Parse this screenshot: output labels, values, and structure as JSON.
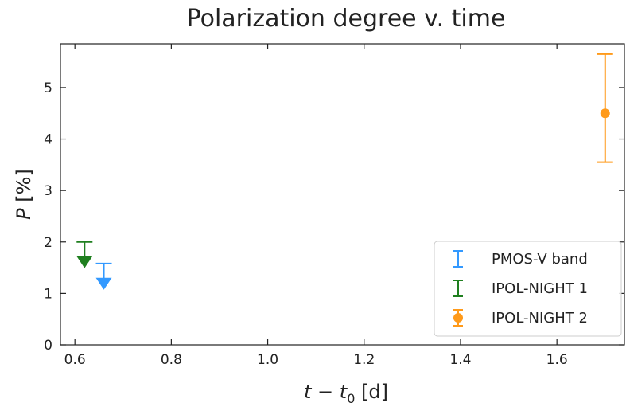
{
  "chart_data": {
    "type": "scatter",
    "title": "Polarization degree v. time",
    "xlabel": {
      "main": "t − t",
      "sub": "0",
      "unit": " [d]"
    },
    "ylabel": {
      "main": "P",
      "unit": " [%]"
    },
    "xlim": [
      0.57,
      1.74
    ],
    "ylim": [
      0,
      5.85
    ],
    "xticks": [
      0.6,
      0.8,
      1.0,
      1.2,
      1.4,
      1.6
    ],
    "xtick_labels": [
      "0.6",
      "0.8",
      "1.0",
      "1.2",
      "1.4",
      "1.6"
    ],
    "yticks": [
      0,
      1,
      2,
      3,
      4,
      5
    ],
    "ytick_labels": [
      "0",
      "1",
      "2",
      "3",
      "4",
      "5"
    ],
    "grid": false,
    "legend_position": "lower-right",
    "series": [
      {
        "name": "PMOS-V band",
        "color": "#3399ff",
        "kind": "upper-limit",
        "points": [
          {
            "x": 0.66,
            "y": 1.58,
            "arrow_to": 1.18
          }
        ]
      },
      {
        "name": "IPOL-NIGHT 1",
        "color": "#1f7f1f",
        "kind": "upper-limit",
        "points": [
          {
            "x": 0.62,
            "y": 2.0,
            "arrow_to": 1.6
          }
        ]
      },
      {
        "name": "IPOL-NIGHT 2",
        "color": "#ff9a1a",
        "kind": "errorbar",
        "points": [
          {
            "x": 1.7,
            "y": 4.5,
            "y_low": 3.55,
            "y_high": 5.65
          }
        ]
      }
    ]
  }
}
